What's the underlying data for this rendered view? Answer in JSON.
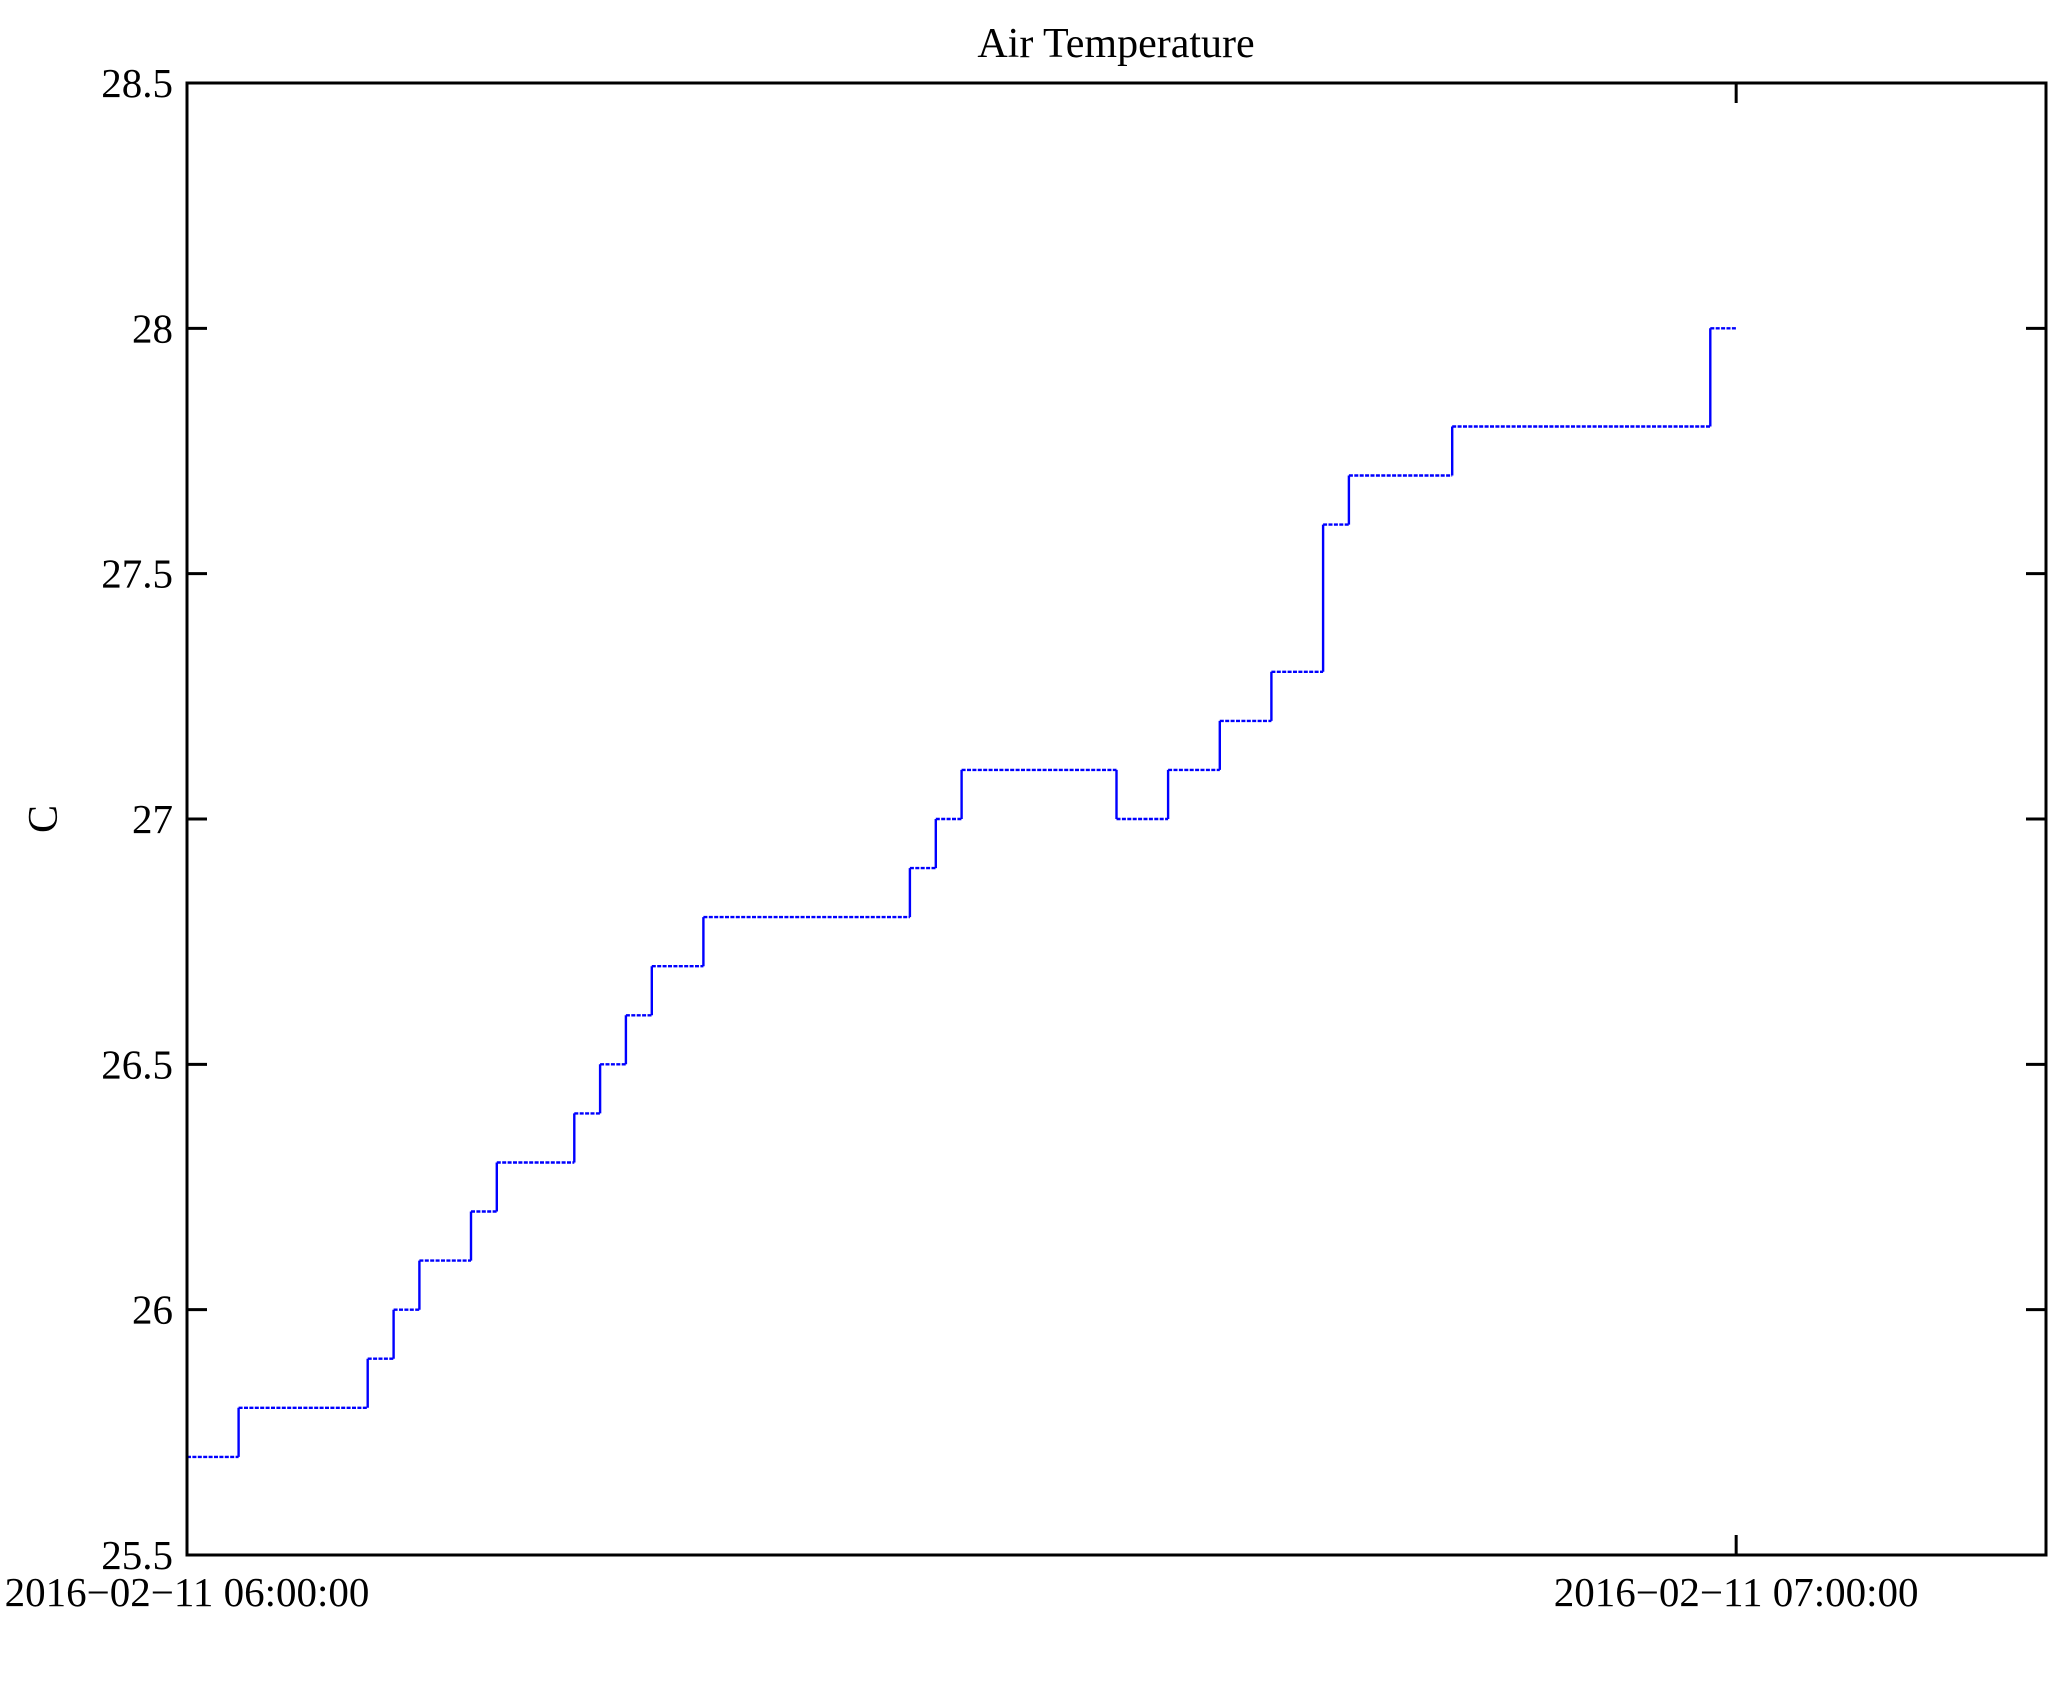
{
  "chart_data": {
    "type": "line",
    "step": true,
    "title": "Air Temperature",
    "ylabel": "C",
    "xlabel": "",
    "grid": false,
    "line_color": "#0000ff",
    "frame_color": "#000000",
    "ylim": [
      25.5,
      28.5
    ],
    "yticks": {
      "values": [
        25.5,
        26,
        26.5,
        27,
        27.5,
        28,
        28.5
      ],
      "labels": [
        "25.5",
        "26",
        "26.5",
        "27",
        "27.5",
        "28",
        "28.5"
      ]
    },
    "xlim_minutes": [
      0,
      72
    ],
    "xticks": [
      {
        "minutes": 0,
        "label": "2016−02−11 06:00:00"
      },
      {
        "minutes": 60,
        "label": "2016−02−11 07:00:00"
      }
    ],
    "series": [
      {
        "name": "air-temperature",
        "color": "#0000ff",
        "units": "C",
        "points_minutes_celsius": [
          [
            0,
            25.7
          ],
          [
            2,
            25.8
          ],
          [
            7,
            25.9
          ],
          [
            8,
            26.0
          ],
          [
            9,
            26.1
          ],
          [
            11,
            26.2
          ],
          [
            12,
            26.3
          ],
          [
            15,
            26.4
          ],
          [
            16,
            26.5
          ],
          [
            17,
            26.6
          ],
          [
            18,
            26.7
          ],
          [
            20,
            26.8
          ],
          [
            28,
            26.9
          ],
          [
            29,
            27.0
          ],
          [
            30,
            27.1
          ],
          [
            36,
            27.0
          ],
          [
            38,
            27.1
          ],
          [
            40,
            27.2
          ],
          [
            42,
            27.3
          ],
          [
            44,
            27.6
          ],
          [
            45,
            27.7
          ],
          [
            49,
            27.8
          ],
          [
            59,
            28.0
          ],
          [
            60,
            28.0
          ]
        ]
      }
    ]
  }
}
